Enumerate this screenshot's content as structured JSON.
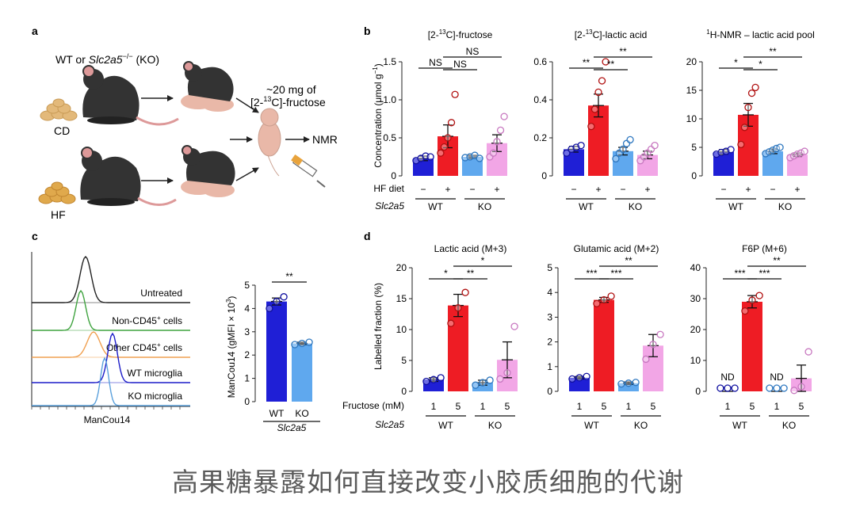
{
  "caption": "高果糖暴露如何直接改变小胶质细胞的代谢",
  "panel_a": {
    "letter": "a",
    "header_prefix": "WT or ",
    "header_gene": "Slc2a5",
    "header_sup": "−/−",
    "header_suffix": " (KO)",
    "diet_cd": "CD",
    "diet_hf": "HF",
    "dose_line1": "~20 mg of",
    "dose_line2_pre": "[2-",
    "dose_line2_sup": "13",
    "dose_line2_post": "C]-fructose",
    "nmr": "NMR"
  },
  "panel_b": {
    "letter": "b",
    "ylabel": "Concentration (μmol g",
    "ylabel_sup": "−1",
    "ylabel_end": ")",
    "row1_label": "HF diet",
    "row2_label": "Slc2a5",
    "row1": [
      "−",
      "+",
      "−",
      "+"
    ],
    "groups": [
      "WT",
      "KO"
    ]
  },
  "panel_c": {
    "letter": "c",
    "histogram_xlabel": "ManCou14",
    "histogram_labels": [
      "Untreated",
      "Non-CD45",
      "Other CD45",
      "WT microglia",
      "KO microglia"
    ],
    "histogram_label_suffix": [
      "",
      " cells",
      " cells",
      "",
      ""
    ],
    "sup_plus": "+",
    "bar_ylabel": "ManCou14 (gMFI × 10",
    "bar_ylabel_sup": "3",
    "bar_ylabel_end": ")",
    "bar_gene": "Slc2a5",
    "colors": [
      "#222222",
      "#3fa33f",
      "#f0a050",
      "#1c1cc8",
      "#5aa0dc"
    ]
  },
  "panel_d": {
    "letter": "d",
    "ylabel": "Labelled fraction (%)",
    "row1_label": "Fructose (mM)",
    "row2_label": "Slc2a5",
    "row1": [
      "1",
      "5",
      "1",
      "5"
    ],
    "groups": [
      "WT",
      "KO"
    ]
  },
  "chart_data": [
    {
      "id": "b1",
      "type": "bar",
      "title_pre": "[2-",
      "title_sup": "13",
      "title_post": "C]-fructose",
      "categories": [
        "WT −",
        "WT +",
        "KO −",
        "KO +"
      ],
      "values": [
        0.23,
        0.52,
        0.25,
        0.43
      ],
      "errors": [
        0.03,
        0.15,
        0.02,
        0.11
      ],
      "points": [
        [
          0.2,
          0.23,
          0.26,
          0.25
        ],
        [
          0.3,
          0.38,
          0.5,
          0.7,
          1.07
        ],
        [
          0.24,
          0.25,
          0.27,
          0.23
        ],
        [
          0.25,
          0.3,
          0.45,
          0.6,
          0.78
        ]
      ],
      "ylim": [
        0,
        1.5
      ],
      "yticks": [
        "0",
        "0.5",
        "1.0",
        "1.5"
      ],
      "significance": [
        {
          "from": 0,
          "to": 1,
          "level": 1,
          "label": "NS"
        },
        {
          "from": 1,
          "to": 2,
          "level": 0,
          "label": "NS"
        },
        {
          "from": 1,
          "to": 3,
          "level": 2,
          "label": "NS"
        }
      ]
    },
    {
      "id": "b2",
      "type": "bar",
      "title_pre": "[2-",
      "title_sup": "13",
      "title_post": "C]-lactic acid",
      "categories": [
        "WT −",
        "WT +",
        "KO −",
        "KO +"
      ],
      "values": [
        0.14,
        0.37,
        0.13,
        0.11
      ],
      "errors": [
        0.015,
        0.06,
        0.02,
        0.02
      ],
      "points": [
        [
          0.12,
          0.14,
          0.15,
          0.16
        ],
        [
          0.26,
          0.35,
          0.44,
          0.5,
          0.6
        ],
        [
          0.09,
          0.12,
          0.14,
          0.17,
          0.19
        ],
        [
          0.08,
          0.1,
          0.12,
          0.14,
          0.16
        ]
      ],
      "ylim": [
        0,
        0.6
      ],
      "yticks": [
        "0",
        "0.2",
        "0.4",
        "0.6"
      ],
      "significance": [
        {
          "from": 0,
          "to": 1,
          "level": 1,
          "label": "**"
        },
        {
          "from": 1,
          "to": 2,
          "level": 0,
          "label": "**"
        },
        {
          "from": 1,
          "to": 3,
          "level": 2,
          "label": "**"
        }
      ]
    },
    {
      "id": "b3",
      "type": "bar",
      "title_pre": "",
      "title_sup": "1",
      "title_post": "H-NMR – lactic acid pool",
      "categories": [
        "WT −",
        "WT +",
        "KO −",
        "KO +"
      ],
      "values": [
        4.2,
        10.7,
        4.3,
        3.7
      ],
      "errors": [
        0.4,
        2.0,
        0.4,
        0.3
      ],
      "points": [
        [
          3.8,
          4.1,
          4.3,
          4.6
        ],
        [
          5.5,
          8.5,
          12.0,
          14.5,
          15.5
        ],
        [
          3.9,
          4.2,
          4.5,
          4.8,
          5.0
        ],
        [
          3.2,
          3.5,
          3.8,
          4.0,
          4.3
        ]
      ],
      "ylim": [
        0,
        20
      ],
      "yticks": [
        "0",
        "5",
        "10",
        "15",
        "20"
      ],
      "significance": [
        {
          "from": 0,
          "to": 1,
          "level": 1,
          "label": "*"
        },
        {
          "from": 1,
          "to": 2,
          "level": 0,
          "label": "*"
        },
        {
          "from": 1,
          "to": 3,
          "level": 2,
          "label": "**"
        }
      ]
    },
    {
      "id": "c_bar",
      "type": "bar",
      "categories": [
        "WT",
        "KO"
      ],
      "values": [
        4.3,
        2.5
      ],
      "errors": [
        0.15,
        0.05
      ],
      "points": [
        [
          4.0,
          4.3,
          4.5
        ],
        [
          2.45,
          2.5,
          2.55
        ]
      ],
      "ylim": [
        0,
        5
      ],
      "yticks": [
        "0",
        "1",
        "2",
        "3",
        "4",
        "5"
      ],
      "significance": [
        {
          "from": 0,
          "to": 1,
          "level": 0,
          "label": "**"
        }
      ]
    },
    {
      "id": "d1",
      "type": "bar",
      "title": "Lactic acid (M+3)",
      "categories": [
        "WT 1",
        "WT 5",
        "KO 1",
        "KO 5"
      ],
      "values": [
        1.9,
        13.9,
        1.4,
        5.1
      ],
      "errors": [
        0.3,
        1.8,
        0.4,
        2.9
      ],
      "points": [
        [
          1.6,
          1.9,
          2.2
        ],
        [
          11.0,
          13.5,
          16.0
        ],
        [
          1.0,
          1.4,
          1.8
        ],
        [
          2.0,
          3.0,
          10.5
        ]
      ],
      "ylim": [
        0,
        20
      ],
      "yticks": [
        "0",
        "5",
        "10",
        "15",
        "20"
      ],
      "significance": [
        {
          "from": 0,
          "to": 1,
          "level": 1,
          "label": "*"
        },
        {
          "from": 1,
          "to": 2,
          "level": 0,
          "label": "**"
        },
        {
          "from": 1,
          "to": 3,
          "level": 2,
          "label": "*"
        }
      ]
    },
    {
      "id": "d2",
      "type": "bar",
      "title": "Glutamic acid (M+2)",
      "categories": [
        "WT 1",
        "WT 5",
        "KO 1",
        "KO 5"
      ],
      "values": [
        0.55,
        3.7,
        0.33,
        1.85
      ],
      "errors": [
        0.05,
        0.1,
        0.05,
        0.45
      ],
      "points": [
        [
          0.5,
          0.55,
          0.6
        ],
        [
          3.55,
          3.7,
          3.85
        ],
        [
          0.3,
          0.33,
          0.36
        ],
        [
          1.3,
          1.9,
          2.3
        ]
      ],
      "ylim": [
        0,
        5
      ],
      "yticks": [
        "0",
        "1",
        "2",
        "3",
        "4",
        "5"
      ],
      "significance": [
        {
          "from": 0,
          "to": 1,
          "level": 1,
          "label": "***"
        },
        {
          "from": 1,
          "to": 2,
          "level": 0,
          "label": "***"
        },
        {
          "from": 1,
          "to": 3,
          "level": 2,
          "label": "**"
        }
      ]
    },
    {
      "id": "d3",
      "type": "bar",
      "title": "F6P (M+6)",
      "categories": [
        "WT 1",
        "WT 5",
        "KO 1",
        "KO 5"
      ],
      "values": [
        0,
        29.0,
        0,
        4.2
      ],
      "errors": [
        0,
        2.0,
        0,
        4.3
      ],
      "points": [
        [
          0,
          0,
          0
        ],
        [
          26.0,
          29.5,
          31.0
        ],
        [
          0,
          0,
          0
        ],
        [
          0.3,
          1.5,
          12.8
        ]
      ],
      "ylim": [
        0,
        40
      ],
      "yticks": [
        "0",
        "10",
        "20",
        "30",
        "40"
      ],
      "nd_labels": [
        "ND",
        "",
        "ND",
        ""
      ],
      "significance": [
        {
          "from": 0,
          "to": 1,
          "level": 1,
          "label": "***"
        },
        {
          "from": 1,
          "to": 2,
          "level": 0,
          "label": "***"
        },
        {
          "from": 1,
          "to": 3,
          "level": 2,
          "label": "**"
        }
      ]
    }
  ]
}
